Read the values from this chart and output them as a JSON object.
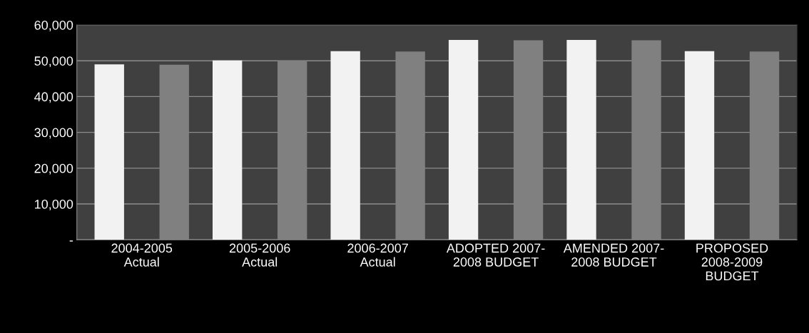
{
  "chart_data": {
    "type": "bar",
    "categories": [
      "2004-2005\nActual",
      "2005-2006\nActual",
      "2006-2007\nActual",
      "ADOPTED 2007-\n2008 BUDGET",
      "AMENDED 2007-\n2008 BUDGET",
      "PROPOSED\n2008-2009\nBUDGET"
    ],
    "series": [
      {
        "color": "#f2f2f2",
        "values": [
          49000,
          50100,
          52700,
          55800,
          55800,
          52700
        ]
      },
      {
        "color": "#808080",
        "values": [
          48900,
          50000,
          52600,
          55700,
          55700,
          52600
        ]
      }
    ],
    "ylim": [
      0,
      60000
    ],
    "yticks": [
      {
        "value": 0,
        "label": "-"
      },
      {
        "value": 10000,
        "label": "10,000"
      },
      {
        "value": 20000,
        "label": "20,000"
      },
      {
        "value": 30000,
        "label": "30,000"
      },
      {
        "value": 40000,
        "label": "40,000"
      },
      {
        "value": 50000,
        "label": "50,000"
      },
      {
        "value": 60000,
        "label": "60,000"
      }
    ],
    "grid": "y"
  }
}
